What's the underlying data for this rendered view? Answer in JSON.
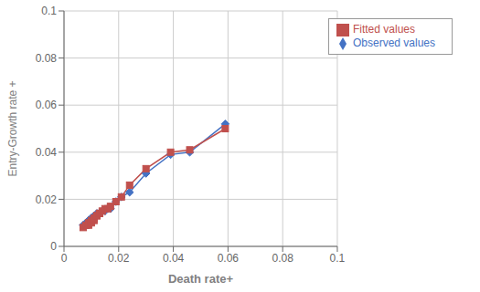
{
  "chart_data": {
    "type": "line",
    "x": [
      0.007,
      0.008,
      0.009,
      0.009,
      0.01,
      0.01,
      0.011,
      0.011,
      0.012,
      0.012,
      0.013,
      0.013,
      0.014,
      0.015,
      0.016,
      0.017,
      0.019,
      0.021,
      0.024,
      0.03,
      0.039,
      0.046,
      0.059
    ],
    "series": [
      {
        "name": "Observed values",
        "color": "#4472C4",
        "marker": "diamond",
        "values": [
          0.009,
          0.01,
          0.011,
          0.011,
          0.012,
          0.012,
          0.013,
          0.013,
          0.013,
          0.014,
          0.014,
          0.014,
          0.015,
          0.015,
          0.016,
          0.016,
          0.019,
          0.021,
          0.023,
          0.031,
          0.039,
          0.04,
          0.052
        ]
      },
      {
        "name": "Fitted values",
        "color": "#C0504D",
        "marker": "square",
        "values": [
          0.008,
          0.009,
          0.009,
          0.01,
          0.01,
          0.011,
          0.011,
          0.012,
          0.013,
          0.013,
          0.014,
          0.014,
          0.015,
          0.016,
          0.016,
          0.017,
          0.019,
          0.021,
          0.026,
          0.033,
          0.04,
          0.041,
          0.05
        ]
      }
    ],
    "xlabel": "Death rate+",
    "ylabel": "Entry-Growth rate +",
    "xlim": [
      0,
      0.1
    ],
    "ylim": [
      0,
      0.1
    ],
    "xticks": [
      0,
      0.02,
      0.04,
      0.06,
      0.08,
      0.1
    ],
    "yticks": [
      0,
      0.02,
      0.04,
      0.06,
      0.08,
      0.1
    ],
    "grid": true,
    "legend": "upper right"
  }
}
